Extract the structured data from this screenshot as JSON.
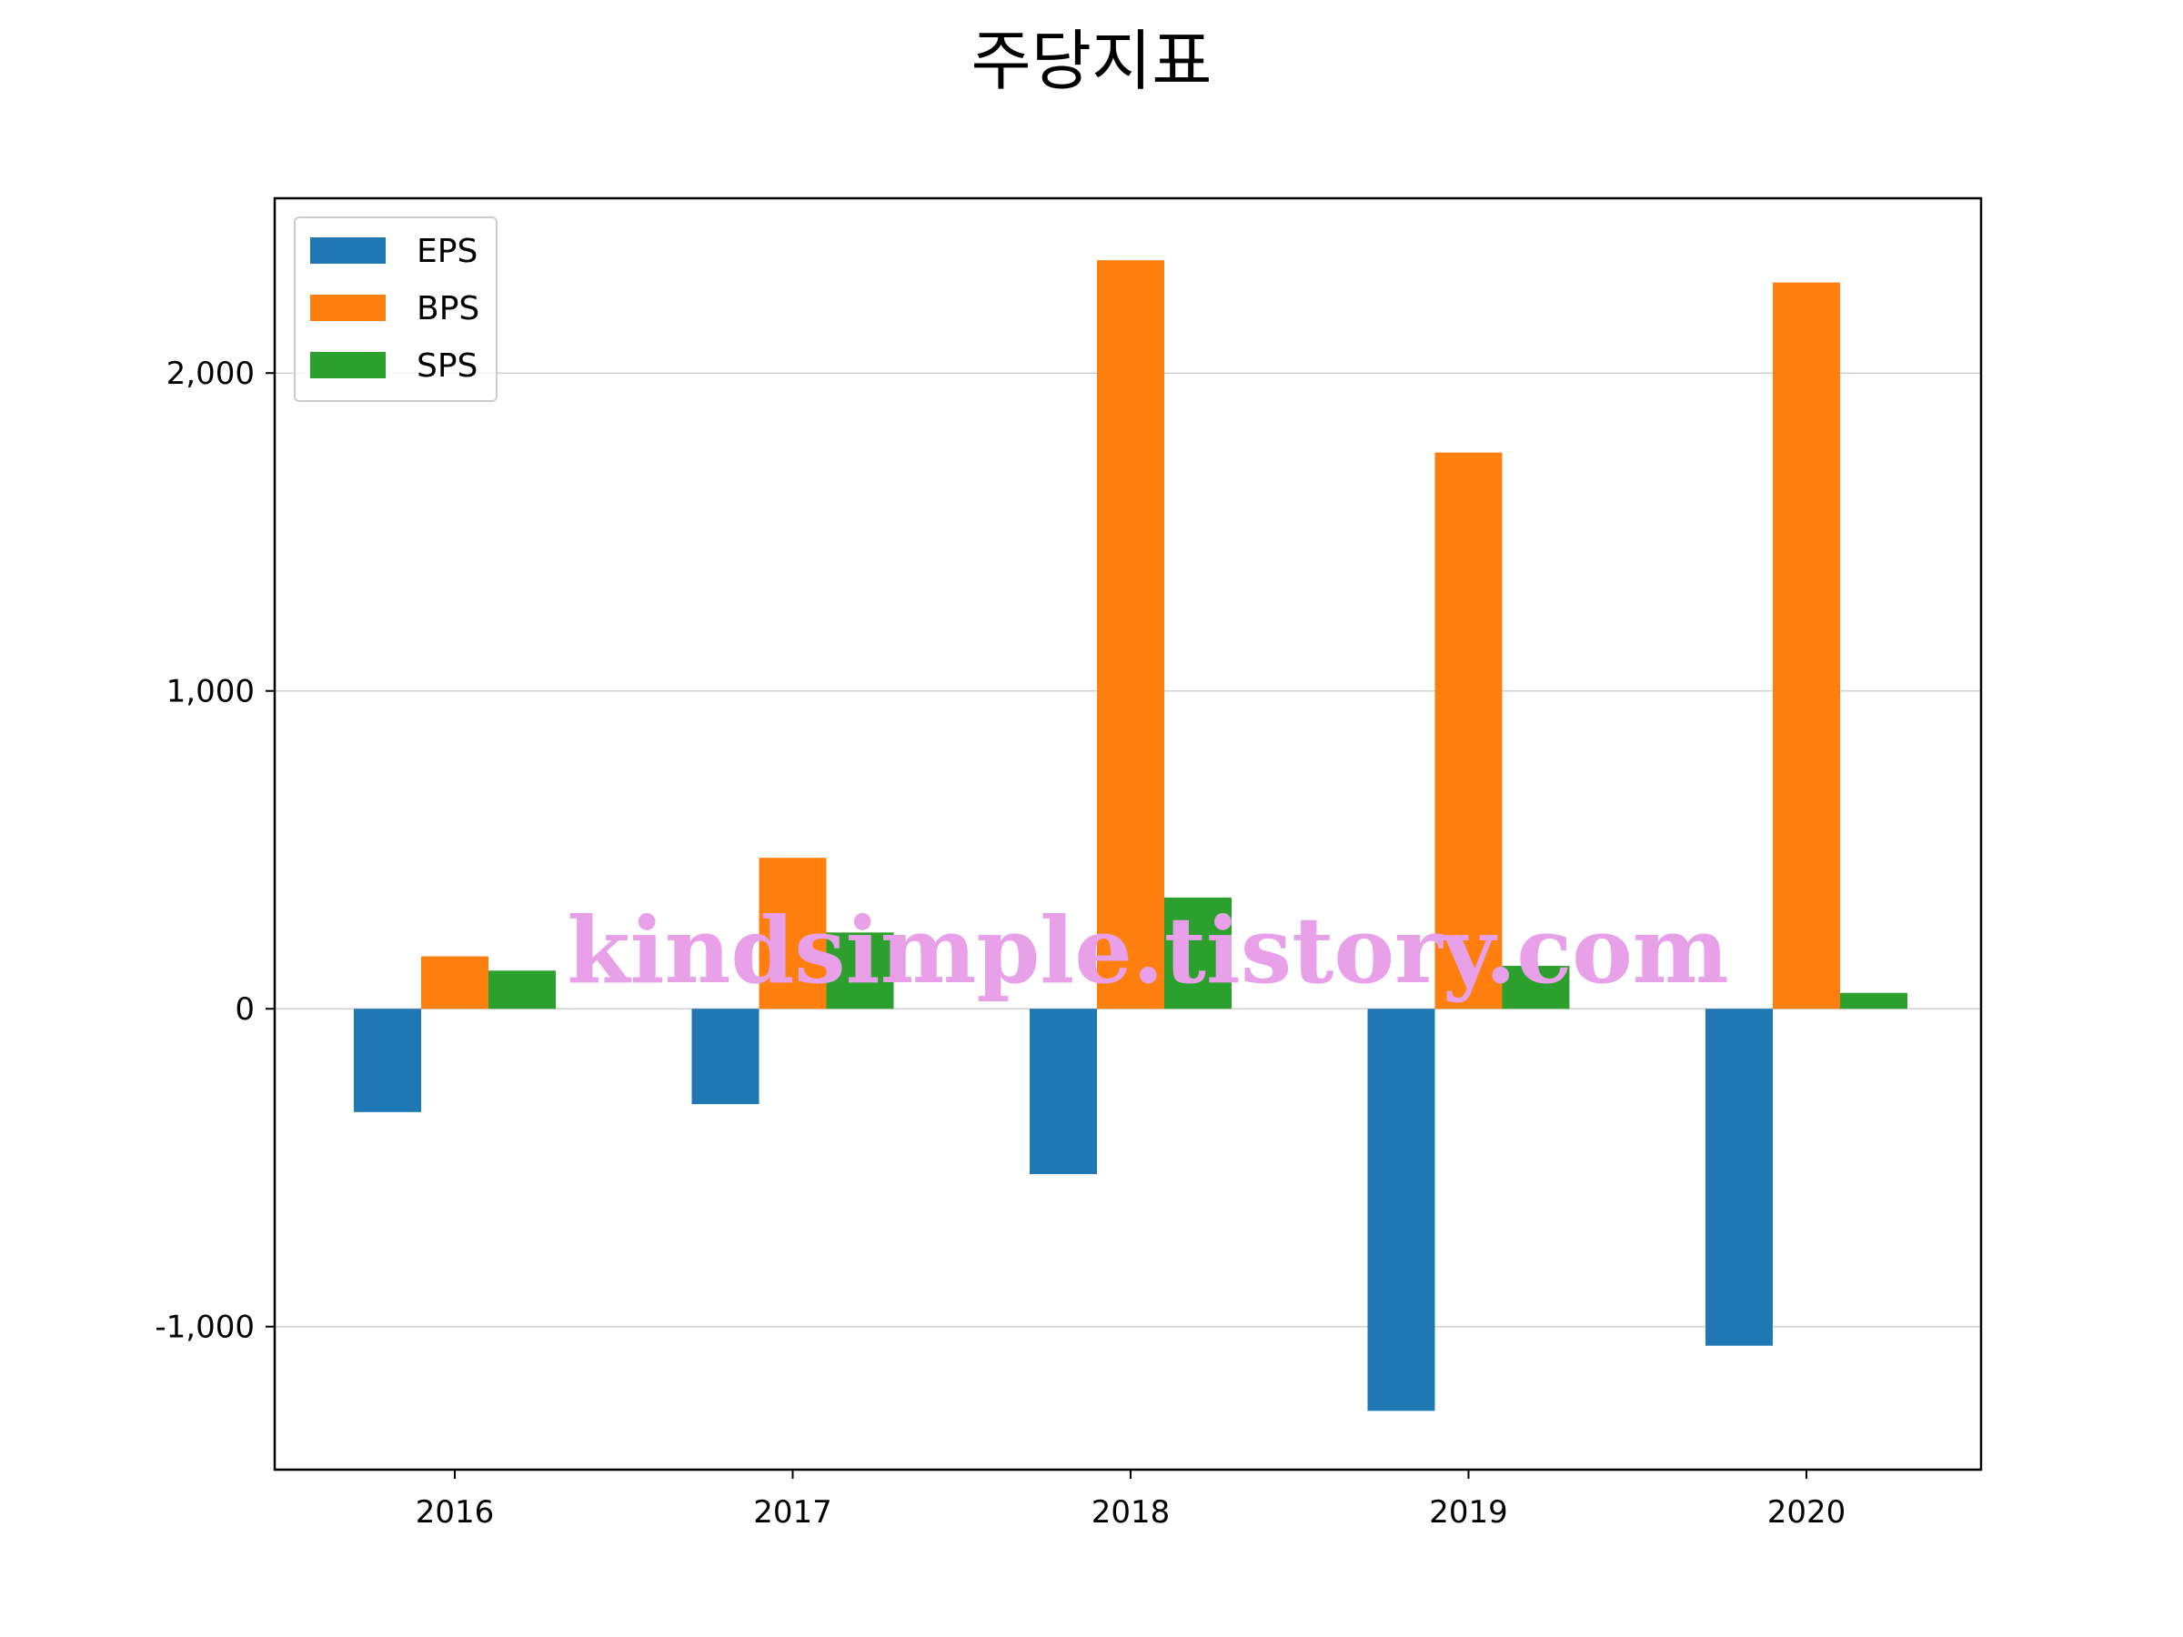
{
  "chart_data": {
    "type": "bar",
    "title": "주당지표",
    "categories": [
      "2016",
      "2017",
      "2018",
      "2019",
      "2020"
    ],
    "series": [
      {
        "name": "EPS",
        "color": "#1f77b4",
        "values": [
          -325,
          -300,
          -520,
          -1265,
          -1060
        ]
      },
      {
        "name": "BPS",
        "color": "#ff7f0e",
        "values": [
          165,
          475,
          2355,
          1750,
          2285
        ]
      },
      {
        "name": "SPS",
        "color": "#2ca02c",
        "values": [
          120,
          240,
          350,
          135,
          50
        ]
      }
    ],
    "ylim": [
      -1450,
      2550
    ],
    "yticks": [
      -1000,
      0,
      1000,
      2000
    ],
    "ytick_labels": [
      "-1,000",
      "0",
      "1,000",
      "2,000"
    ],
    "grid": "y",
    "legend_position": "top-left"
  },
  "watermark": "kindsimple.tistory.com"
}
